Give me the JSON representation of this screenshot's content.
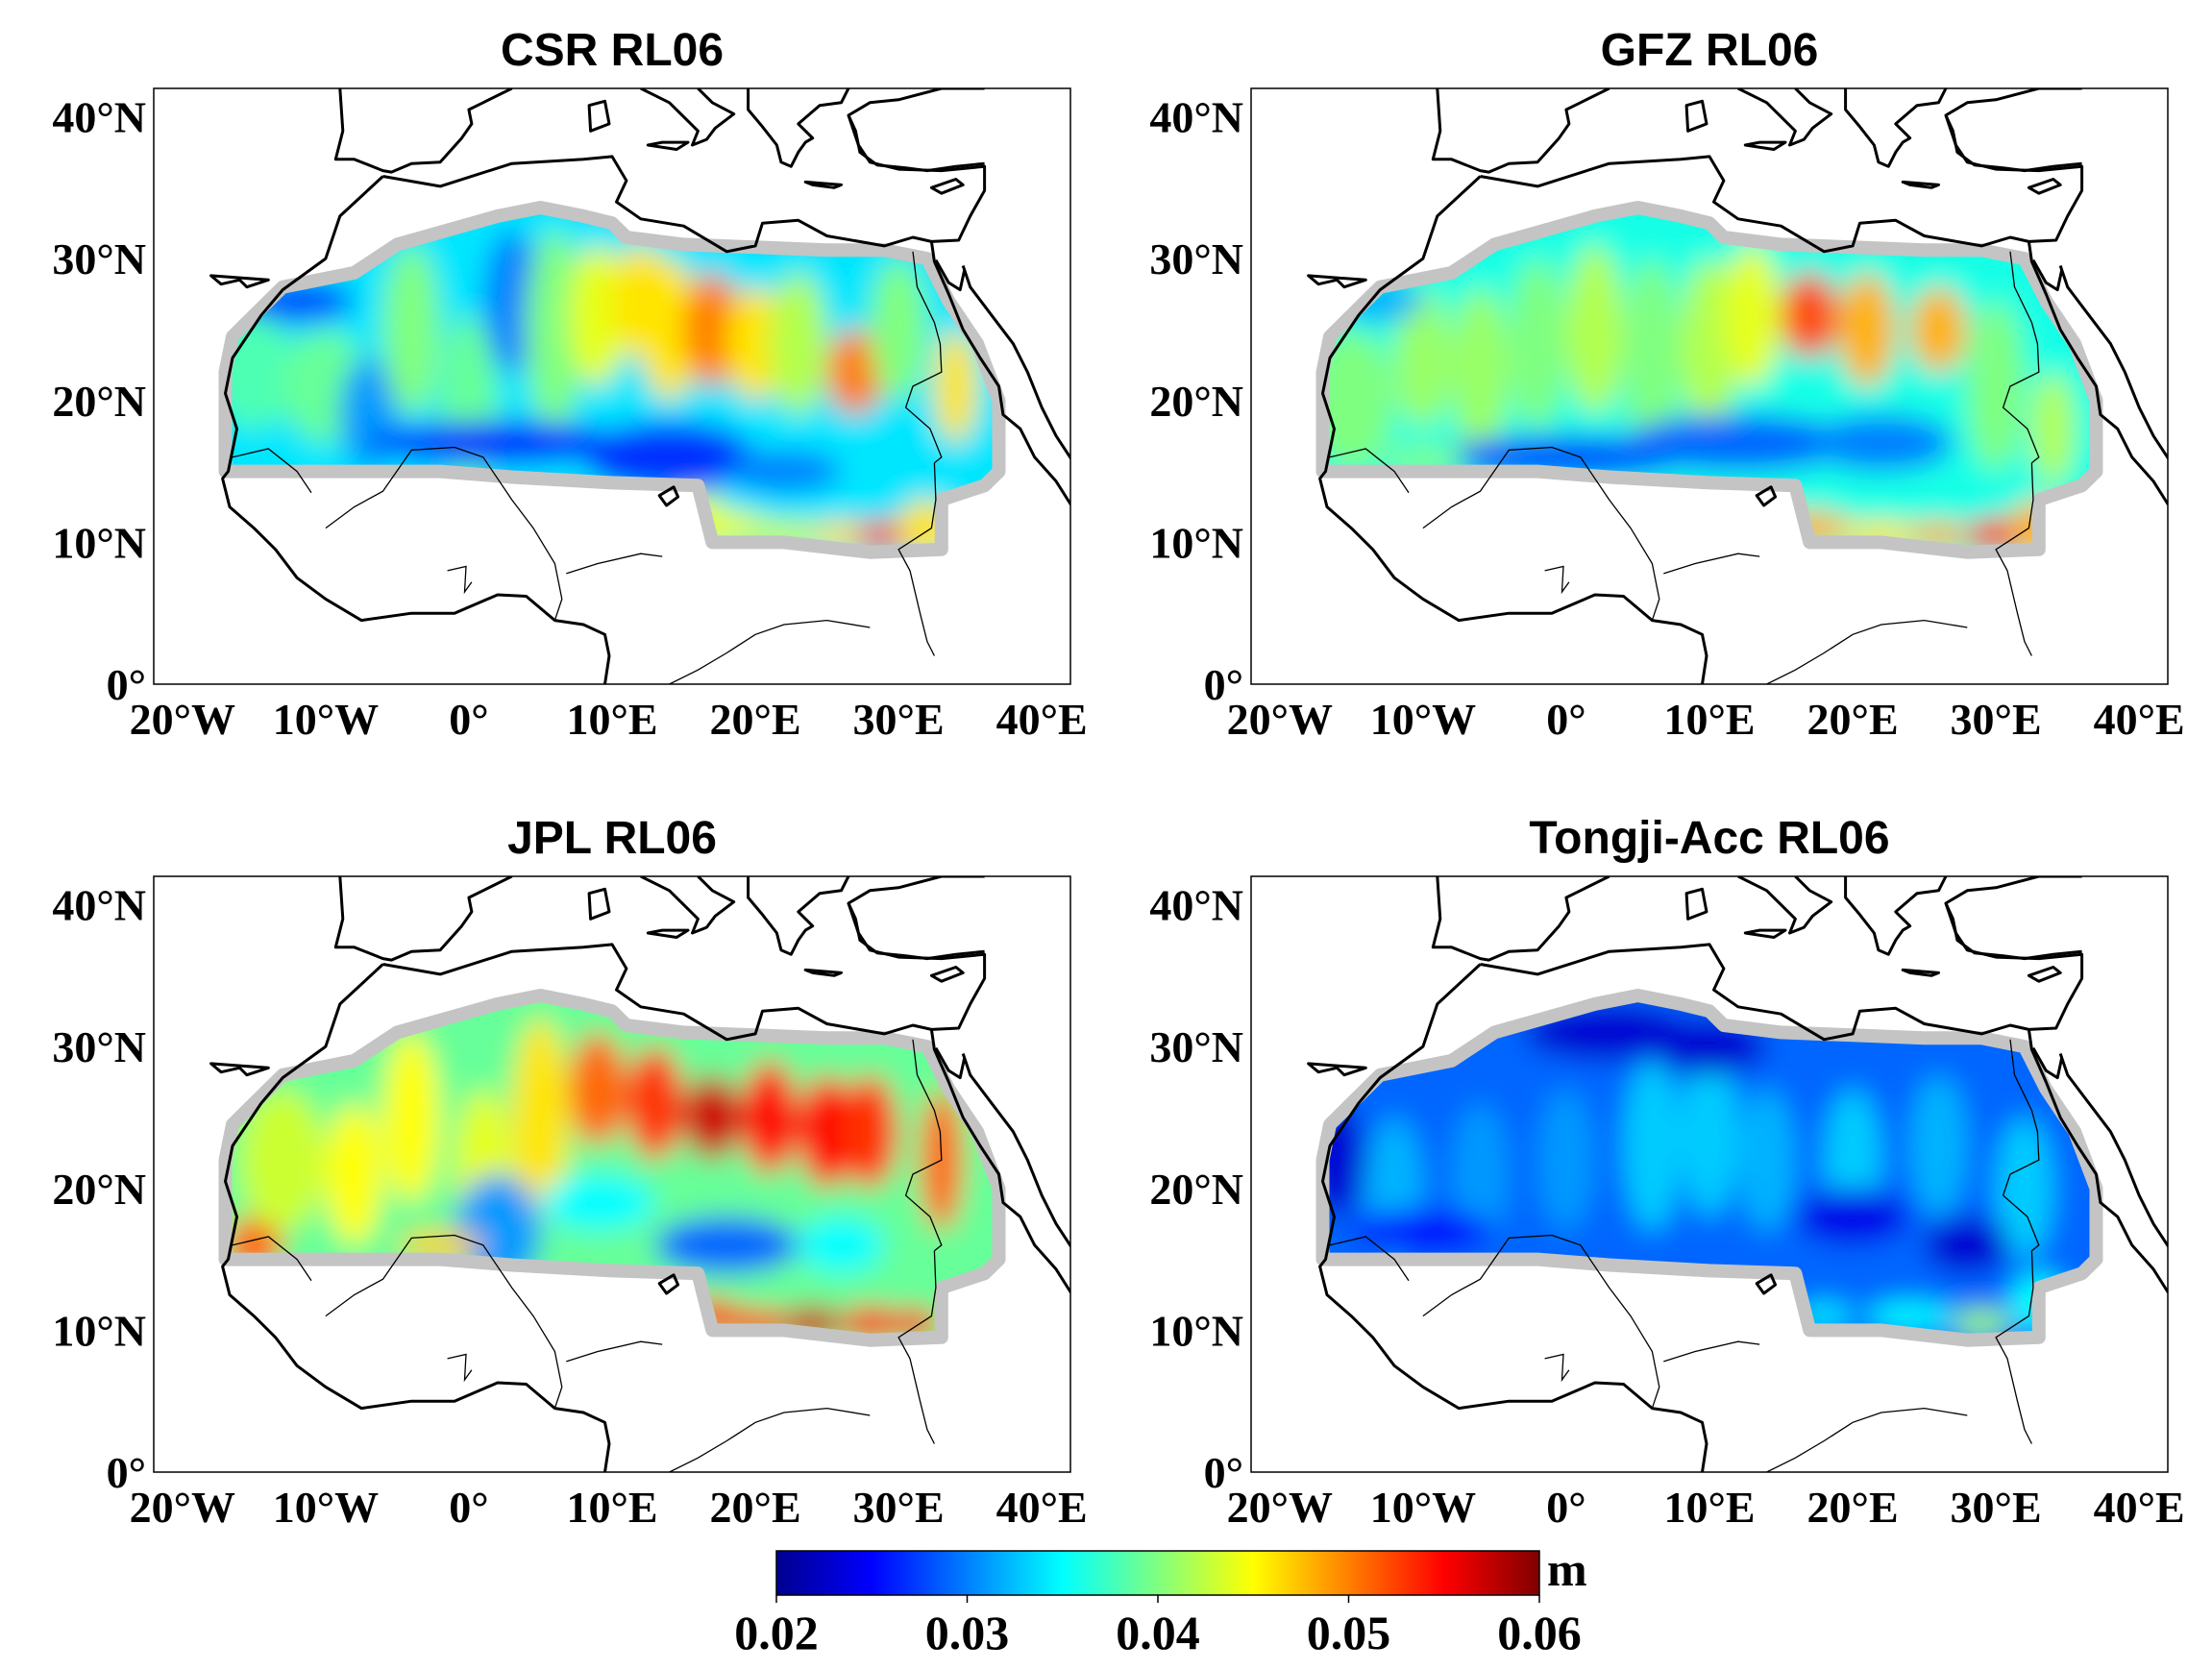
{
  "figure": {
    "colorbar": {
      "unit": "m",
      "ticks": [
        "0.02",
        "0.03",
        "0.04",
        "0.05",
        "0.06"
      ],
      "range": [
        0.02,
        0.06
      ],
      "colormap": [
        "#00008f",
        "#0000ff",
        "#00ffff",
        "#ffff00",
        "#ff0000",
        "#800000"
      ]
    },
    "axes": {
      "lat_ticks": [
        "0°",
        "10°N",
        "20°N",
        "30°N",
        "40°N"
      ],
      "lon_ticks": [
        "20°W",
        "10°W",
        "0°",
        "10°E",
        "20°E",
        "30°E",
        "40°E"
      ]
    },
    "panels": [
      {
        "id": "csr",
        "title": "CSR RL06",
        "level": 0.034
      },
      {
        "id": "gfz",
        "title": "GFZ RL06",
        "level": 0.036
      },
      {
        "id": "jpl",
        "title": "JPL RL06",
        "level": 0.039
      },
      {
        "id": "tongji",
        "title": "Tongji-Acc RL06",
        "level": 0.029
      }
    ]
  }
}
